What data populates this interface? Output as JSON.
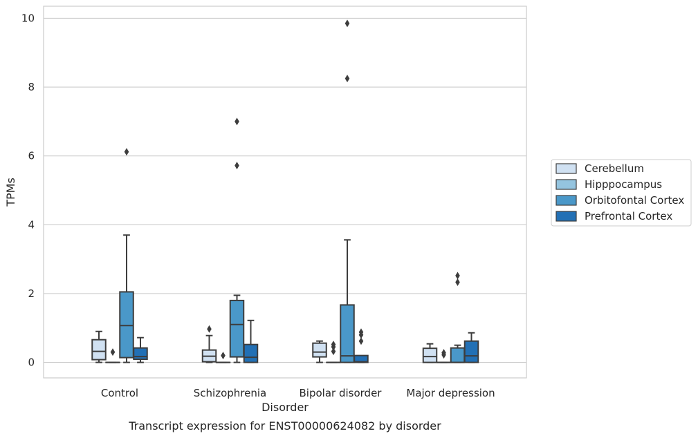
{
  "chart_data": {
    "type": "box",
    "title": "",
    "caption": "Transcript expression for ENST00000624082 by disorder",
    "xlabel": "Disorder",
    "ylabel": "TPMs",
    "ylim": [
      -0.45,
      10.35
    ],
    "yticks": [
      0,
      2,
      4,
      6,
      8,
      10
    ],
    "grid": "horizontal",
    "legend_position": "right",
    "categories": [
      "Control",
      "Schizophrenia",
      "Bipolar disorder",
      "Major depression"
    ],
    "series": [
      {
        "name": "Cerebellum",
        "color": "#d0e1f2",
        "boxes": [
          {
            "min": 0.0,
            "q1": 0.08,
            "median": 0.32,
            "q3": 0.66,
            "max": 0.9,
            "outliers": []
          },
          {
            "min": 0.0,
            "q1": 0.02,
            "median": 0.18,
            "q3": 0.36,
            "max": 0.78,
            "outliers": [
              0.97
            ]
          },
          {
            "min": 0.0,
            "q1": 0.16,
            "median": 0.3,
            "q3": 0.56,
            "max": 0.62,
            "outliers": []
          },
          {
            "min": 0.0,
            "q1": 0.0,
            "median": 0.17,
            "q3": 0.41,
            "max": 0.54,
            "outliers": []
          }
        ]
      },
      {
        "name": "Hipppocampus",
        "color": "#94c4df",
        "boxes": [
          {
            "min": 0.0,
            "q1": 0.0,
            "median": 0.0,
            "q3": 0.0,
            "max": 0.0,
            "outliers": [
              0.3
            ]
          },
          {
            "min": 0.0,
            "q1": 0.0,
            "median": 0.0,
            "q3": 0.0,
            "max": 0.0,
            "outliers": [
              0.2
            ]
          },
          {
            "min": 0.0,
            "q1": 0.0,
            "median": 0.0,
            "q3": 0.0,
            "max": 0.0,
            "outliers": [
              0.32,
              0.45,
              0.52
            ]
          },
          {
            "min": 0.0,
            "q1": 0.0,
            "median": 0.0,
            "q3": 0.0,
            "max": 0.0,
            "outliers": [
              0.22,
              0.28
            ]
          }
        ]
      },
      {
        "name": "Orbitofontal Cortex",
        "color": "#4a98c9",
        "boxes": [
          {
            "min": 0.0,
            "q1": 0.14,
            "median": 1.07,
            "q3": 2.05,
            "max": 3.7,
            "outliers": [
              6.12
            ]
          },
          {
            "min": 0.0,
            "q1": 0.16,
            "median": 1.1,
            "q3": 1.8,
            "max": 1.95,
            "outliers": [
              5.72,
              7.0
            ]
          },
          {
            "min": 0.0,
            "q1": 0.0,
            "median": 0.19,
            "q3": 1.67,
            "max": 3.56,
            "outliers": [
              8.25,
              9.85
            ]
          },
          {
            "min": 0.0,
            "q1": 0.0,
            "median": 0.0,
            "q3": 0.42,
            "max": 0.5,
            "outliers": [
              2.33,
              2.52
            ]
          }
        ]
      },
      {
        "name": "Prefrontal Cortex",
        "color": "#2270b5",
        "boxes": [
          {
            "min": 0.0,
            "q1": 0.09,
            "median": 0.17,
            "q3": 0.42,
            "max": 0.72,
            "outliers": []
          },
          {
            "min": 0.0,
            "q1": 0.0,
            "median": 0.15,
            "q3": 0.52,
            "max": 1.22,
            "outliers": []
          },
          {
            "min": 0.0,
            "q1": 0.0,
            "median": 0.02,
            "q3": 0.2,
            "max": 0.2,
            "outliers": [
              0.62,
              0.8,
              0.88
            ]
          },
          {
            "min": 0.0,
            "q1": 0.0,
            "median": 0.19,
            "q3": 0.62,
            "max": 0.86,
            "outliers": []
          }
        ]
      }
    ]
  },
  "colors": {
    "box_edge": "#3d3d3d",
    "grid": "#cccccc",
    "frame": "#cccccc"
  }
}
